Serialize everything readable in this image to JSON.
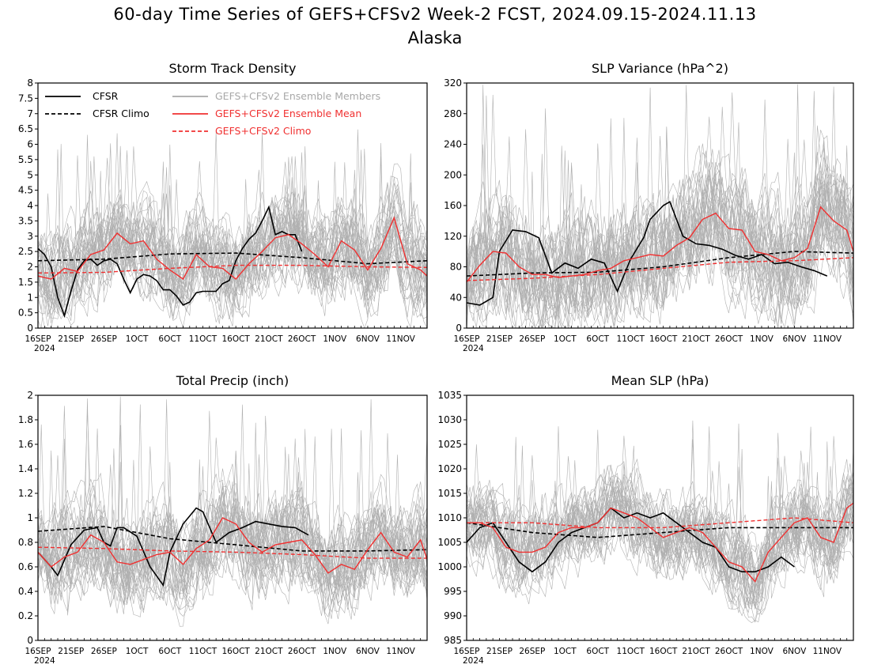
{
  "title": "60-day Time Series of GEFS+CFSv2 Week-2 FCST, 2024.09.15-2024.11.13",
  "subtitle": "Alaska",
  "colors": {
    "cfsr": "#000000",
    "ensemble": "#a8a8a8",
    "ensmean": "#f03030",
    "climo_model": "#f03030"
  },
  "legend": {
    "placement": "top-left of first panel",
    "entries": [
      {
        "label": "CFSR",
        "style": "solid",
        "color": "#000000"
      },
      {
        "label": "CFSR Climo",
        "style": "dashed",
        "color": "#000000"
      },
      {
        "label": "GEFS+CFSv2 Ensemble Members",
        "style": "solid",
        "color": "#a8a8a8"
      },
      {
        "label": "GEFS+CFSv2 Ensemble Mean",
        "style": "solid",
        "color": "#f03030"
      },
      {
        "label": "GEFS+CFSv2 Climo",
        "style": "dashed",
        "color": "#f03030"
      }
    ]
  },
  "chart_data": [
    {
      "type": "line",
      "title": "Storm Track Density",
      "ylim": [
        0,
        8
      ],
      "yticks": [
        0,
        0.5,
        1,
        1.5,
        2,
        2.5,
        3,
        3.5,
        4,
        4.5,
        5,
        5.5,
        6,
        6.5,
        7,
        7.5,
        8
      ],
      "ytick_labels": [
        "0",
        "0.5",
        "1",
        "1.5",
        "2",
        "2.5",
        "3",
        "3.5",
        "4",
        "4.5",
        "5",
        "5.5",
        "6",
        "6.5",
        "7",
        "7.5",
        "8"
      ],
      "x_day_range": [
        0,
        59
      ],
      "xtick_labels": [
        "16SEP",
        "21SEP",
        "26SEP",
        "1OCT",
        "6OCT",
        "11OCT",
        "16OCT",
        "21OCT",
        "26OCT",
        "1NOV",
        "6NOV",
        "11NOV"
      ],
      "xtick_year": "2024",
      "ensemble_band": {
        "low": 0.8,
        "high": 4.6,
        "spike_max": 6.6
      },
      "series": [
        {
          "role": "cfsr",
          "x": [
            0,
            1,
            2,
            3,
            4,
            5,
            6,
            7,
            8,
            9,
            10,
            11,
            12,
            13,
            14,
            15,
            16,
            17,
            18,
            19,
            20,
            21,
            22,
            23,
            24,
            25,
            26,
            27,
            28,
            29,
            30,
            31,
            32,
            33,
            34,
            35,
            36,
            37,
            38,
            39,
            40
          ],
          "y": [
            2.6,
            2.4,
            2.0,
            1.0,
            0.4,
            1.2,
            1.9,
            2.2,
            2.25,
            2.05,
            2.2,
            2.25,
            2.1,
            1.6,
            1.15,
            1.6,
            1.75,
            1.7,
            1.55,
            1.25,
            1.25,
            1.05,
            0.75,
            0.85,
            1.15,
            1.2,
            1.2,
            1.2,
            1.45,
            1.55,
            2.2,
            2.6,
            2.9,
            3.1,
            3.5,
            3.95,
            3.05,
            3.15,
            3.05,
            3.05,
            2.5
          ]
        },
        {
          "role": "cfsr_climo",
          "x": [
            0,
            10,
            20,
            30,
            40,
            50,
            59
          ],
          "y": [
            2.2,
            2.25,
            2.42,
            2.45,
            2.3,
            2.1,
            2.2
          ]
        },
        {
          "role": "ensmean",
          "x": [
            0,
            2,
            4,
            6,
            8,
            10,
            12,
            14,
            16,
            18,
            20,
            22,
            24,
            26,
            28,
            30,
            32,
            34,
            36,
            38,
            40,
            42,
            44,
            46,
            48,
            50,
            52,
            54,
            56,
            58,
            59
          ],
          "y": [
            1.7,
            1.6,
            1.95,
            1.85,
            2.4,
            2.55,
            3.1,
            2.75,
            2.85,
            2.25,
            1.9,
            1.6,
            2.4,
            2.0,
            1.95,
            1.6,
            2.1,
            2.5,
            2.95,
            3.05,
            2.75,
            2.4,
            2.0,
            2.85,
            2.55,
            1.9,
            2.6,
            3.6,
            2.1,
            1.9,
            1.7
          ]
        },
        {
          "role": "model_climo",
          "x": [
            0,
            10,
            20,
            30,
            40,
            50,
            59
          ],
          "y": [
            1.8,
            1.82,
            1.95,
            2.05,
            2.05,
            2.0,
            1.98
          ]
        }
      ]
    },
    {
      "type": "line",
      "title": "SLP Variance (hPa^2)",
      "ylim": [
        0,
        320
      ],
      "yticks": [
        0,
        40,
        80,
        120,
        160,
        200,
        240,
        280,
        320
      ],
      "ytick_labels": [
        "0",
        "40",
        "80",
        "120",
        "160",
        "200",
        "240",
        "280",
        "320"
      ],
      "x_day_range": [
        0,
        59
      ],
      "xtick_labels": [
        "16SEP",
        "21SEP",
        "26SEP",
        "1OCT",
        "6OCT",
        "11OCT",
        "16OCT",
        "21OCT",
        "26OCT",
        "1NOV",
        "6NOV",
        "11NOV"
      ],
      "xtick_year": "2024",
      "ensemble_band": {
        "low": 25,
        "high": 220,
        "spike_max": 320
      },
      "series": [
        {
          "role": "cfsr",
          "x": [
            0,
            2,
            4,
            5,
            7,
            9,
            11,
            13,
            15,
            17,
            19,
            21,
            23,
            25,
            27,
            28,
            30,
            31,
            33,
            35,
            37,
            39,
            41,
            43,
            45,
            47,
            49,
            51,
            53,
            55
          ],
          "y": [
            33,
            30,
            40,
            100,
            128,
            126,
            118,
            72,
            85,
            78,
            90,
            85,
            48,
            90,
            118,
            142,
            160,
            165,
            120,
            110,
            108,
            103,
            95,
            90,
            96,
            84,
            86,
            80,
            75,
            68
          ]
        },
        {
          "role": "cfsr_climo",
          "x": [
            0,
            10,
            20,
            30,
            40,
            50,
            59
          ],
          "y": [
            68,
            72,
            73,
            80,
            92,
            100,
            98
          ]
        },
        {
          "role": "ensmean",
          "x": [
            0,
            2,
            4,
            6,
            8,
            10,
            12,
            14,
            16,
            18,
            20,
            22,
            24,
            26,
            28,
            30,
            32,
            34,
            36,
            38,
            40,
            42,
            44,
            46,
            48,
            50,
            52,
            54,
            56,
            58,
            59
          ],
          "y": [
            60,
            82,
            100,
            98,
            80,
            70,
            70,
            66,
            68,
            70,
            75,
            78,
            88,
            92,
            96,
            94,
            108,
            118,
            142,
            150,
            130,
            128,
            100,
            96,
            88,
            92,
            104,
            158,
            140,
            128,
            100
          ]
        },
        {
          "role": "model_climo",
          "x": [
            0,
            10,
            20,
            30,
            40,
            50,
            59
          ],
          "y": [
            62,
            65,
            70,
            78,
            86,
            88,
            92
          ]
        }
      ]
    },
    {
      "type": "line",
      "title": "Total Precip (inch)",
      "ylim": [
        0,
        2
      ],
      "yticks": [
        0,
        0.2,
        0.4,
        0.6,
        0.8,
        1,
        1.2,
        1.4,
        1.6,
        1.8,
        2
      ],
      "ytick_labels": [
        "0",
        "0.2",
        "0.4",
        "0.6",
        "0.8",
        "1",
        "1.2",
        "1.4",
        "1.6",
        "1.8",
        "2"
      ],
      "x_day_range": [
        0,
        59
      ],
      "xtick_labels": [
        "16SEP",
        "21SEP",
        "26SEP",
        "1OCT",
        "6OCT",
        "11OCT",
        "16OCT",
        "21OCT",
        "26OCT",
        "1NOV",
        "6NOV",
        "11NOV"
      ],
      "xtick_year": "2024",
      "ensemble_band": {
        "low": 0.28,
        "high": 1.22,
        "spike_max": 2.0
      },
      "series": [
        {
          "role": "cfsr",
          "x": [
            0,
            2,
            3,
            5,
            7,
            9,
            10,
            11,
            12,
            13,
            15,
            17,
            19,
            20,
            22,
            24,
            25,
            27,
            29,
            30,
            31,
            33,
            35,
            37,
            39,
            41
          ],
          "y": [
            0.72,
            0.6,
            0.53,
            0.78,
            0.9,
            0.92,
            0.8,
            0.77,
            0.92,
            0.92,
            0.85,
            0.6,
            0.45,
            0.72,
            0.95,
            1.08,
            1.05,
            0.8,
            0.88,
            0.9,
            0.92,
            0.97,
            0.95,
            0.93,
            0.92,
            0.86
          ]
        },
        {
          "role": "cfsr_climo",
          "x": [
            0,
            10,
            20,
            30,
            40,
            50,
            59
          ],
          "y": [
            0.89,
            0.93,
            0.83,
            0.78,
            0.73,
            0.73,
            0.74
          ]
        },
        {
          "role": "ensmean",
          "x": [
            0,
            2,
            4,
            6,
            8,
            10,
            12,
            14,
            16,
            18,
            20,
            22,
            24,
            26,
            28,
            30,
            32,
            34,
            36,
            38,
            40,
            42,
            44,
            46,
            48,
            50,
            52,
            54,
            56,
            58,
            59
          ],
          "y": [
            0.72,
            0.6,
            0.68,
            0.72,
            0.86,
            0.8,
            0.64,
            0.62,
            0.66,
            0.7,
            0.72,
            0.62,
            0.75,
            0.82,
            1.0,
            0.95,
            0.8,
            0.72,
            0.78,
            0.8,
            0.82,
            0.7,
            0.55,
            0.62,
            0.58,
            0.74,
            0.88,
            0.72,
            0.68,
            0.82,
            0.66
          ]
        },
        {
          "role": "model_climo",
          "x": [
            0,
            10,
            20,
            30,
            40,
            50,
            59
          ],
          "y": [
            0.76,
            0.75,
            0.73,
            0.72,
            0.7,
            0.67,
            0.67
          ]
        }
      ]
    },
    {
      "type": "line",
      "title": "Mean SLP (hPa)",
      "ylim": [
        985,
        1035
      ],
      "yticks": [
        985,
        990,
        995,
        1000,
        1005,
        1010,
        1015,
        1020,
        1025,
        1030,
        1035
      ],
      "ytick_labels": [
        "985",
        "990",
        "995",
        "1000",
        "1005",
        "1010",
        "1015",
        "1020",
        "1025",
        "1030",
        "1035"
      ],
      "x_day_range": [
        0,
        59
      ],
      "xtick_labels": [
        "16SEP",
        "21SEP",
        "26SEP",
        "1OCT",
        "6OCT",
        "11OCT",
        "16OCT",
        "21OCT",
        "26OCT",
        "1NOV",
        "6NOV",
        "11NOV"
      ],
      "xtick_year": "2024",
      "ensemble_band": {
        "low": 997,
        "high": 1018,
        "spike_max": 1030
      },
      "series": [
        {
          "role": "cfsr",
          "x": [
            0,
            2,
            4,
            6,
            8,
            10,
            12,
            14,
            16,
            18,
            20,
            22,
            24,
            26,
            28,
            30,
            32,
            34,
            36,
            38,
            40,
            42,
            44,
            46,
            48,
            50
          ],
          "y": [
            1005,
            1008,
            1009,
            1005,
            1001,
            999,
            1001,
            1005,
            1007,
            1008,
            1009,
            1012,
            1010,
            1011,
            1010,
            1011,
            1009,
            1007,
            1005,
            1004,
            1000,
            999,
            999,
            1000,
            1002,
            1000
          ]
        },
        {
          "role": "cfsr_climo",
          "x": [
            0,
            10,
            20,
            30,
            40,
            50,
            59
          ],
          "y": [
            1009,
            1007,
            1006,
            1007,
            1008,
            1008,
            1008
          ]
        },
        {
          "role": "ensmean",
          "x": [
            0,
            2,
            4,
            6,
            8,
            10,
            12,
            14,
            16,
            18,
            20,
            22,
            24,
            26,
            28,
            30,
            32,
            34,
            36,
            38,
            40,
            42,
            44,
            46,
            48,
            50,
            52,
            54,
            56,
            58,
            59
          ],
          "y": [
            1009,
            1009,
            1008,
            1004,
            1003,
            1003,
            1004,
            1007,
            1008,
            1008,
            1009,
            1012,
            1011,
            1010,
            1008,
            1006,
            1007,
            1008,
            1007,
            1004,
            1001,
            1000,
            997,
            1003,
            1006,
            1009,
            1010,
            1006,
            1005,
            1012,
            1013
          ]
        },
        {
          "role": "model_climo",
          "x": [
            0,
            10,
            20,
            30,
            40,
            50,
            59
          ],
          "y": [
            1009,
            1009,
            1008,
            1008,
            1009,
            1010,
            1009
          ]
        }
      ]
    }
  ]
}
